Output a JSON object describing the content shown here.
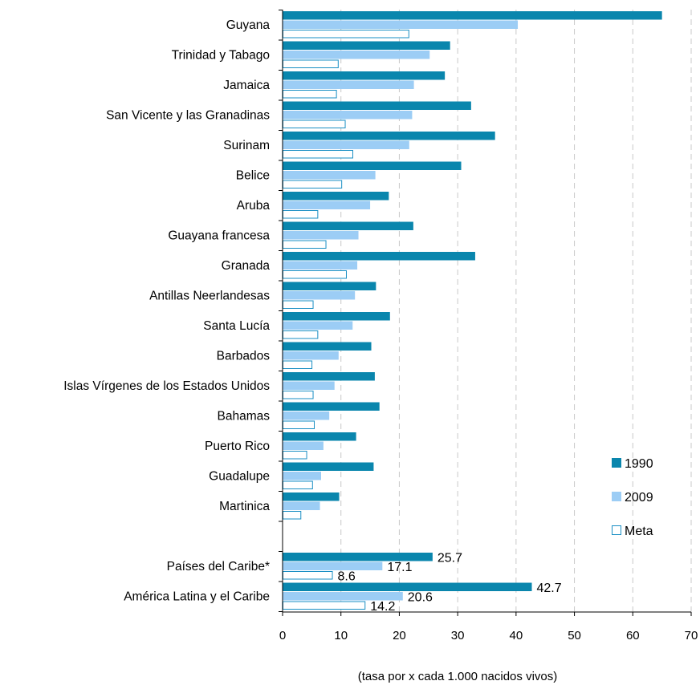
{
  "chart_data": {
    "type": "bar",
    "orientation": "horizontal",
    "categories": [
      "Guyana",
      "Trinidad y Tabago",
      "Jamaica",
      "San Vicente y las Granadinas",
      "Surinam",
      "Belice",
      "Aruba",
      "Guayana francesa",
      "Granada",
      "Antillas Neerlandesas",
      "Santa Lucía",
      "Barbados",
      "Islas Vírgenes de los Estados Unidos",
      "Bahamas",
      "Puerto Rico",
      "Guadalupe",
      "Martinica",
      "",
      "Países del Caribe*",
      "América Latina y el Caribe"
    ],
    "series": [
      {
        "name": "1990",
        "color": "#0a86ad",
        "values": [
          65.0,
          28.7,
          27.8,
          32.3,
          36.4,
          30.6,
          18.2,
          22.4,
          33.0,
          16.0,
          18.4,
          15.2,
          15.8,
          16.6,
          12.6,
          15.6,
          9.7,
          null,
          25.7,
          42.7
        ]
      },
      {
        "name": "2009",
        "color": "#9ccdf5",
        "values": [
          40.3,
          25.2,
          22.5,
          22.2,
          21.7,
          15.9,
          15.0,
          13.0,
          12.8,
          12.4,
          12.0,
          9.6,
          8.9,
          8.0,
          7.0,
          6.6,
          6.4,
          null,
          17.1,
          20.6
        ]
      },
      {
        "name": "Meta",
        "color": "#ffffff",
        "stroke": "#1a8fc4",
        "values": [
          21.7,
          9.6,
          9.3,
          10.8,
          12.1,
          10.2,
          6.1,
          7.5,
          11.0,
          5.3,
          6.1,
          5.1,
          5.3,
          5.5,
          4.2,
          5.2,
          3.2,
          null,
          8.6,
          14.2
        ]
      }
    ],
    "data_labels": [
      {
        "category_index": 18,
        "series_index": 0,
        "text": "25.7"
      },
      {
        "category_index": 18,
        "series_index": 1,
        "text": "17.1"
      },
      {
        "category_index": 18,
        "series_index": 2,
        "text": "8.6"
      },
      {
        "category_index": 19,
        "series_index": 0,
        "text": "42.7"
      },
      {
        "category_index": 19,
        "series_index": 1,
        "text": "20.6"
      },
      {
        "category_index": 19,
        "series_index": 2,
        "text": "14.2"
      }
    ],
    "xlim": [
      0,
      70
    ],
    "xticks": [
      0,
      10,
      20,
      30,
      40,
      50,
      60,
      70
    ],
    "xlabel": "(tasa por x cada 1.000 nacidos vivos)",
    "grid": "vertical-dashed",
    "legend_position": "right"
  }
}
